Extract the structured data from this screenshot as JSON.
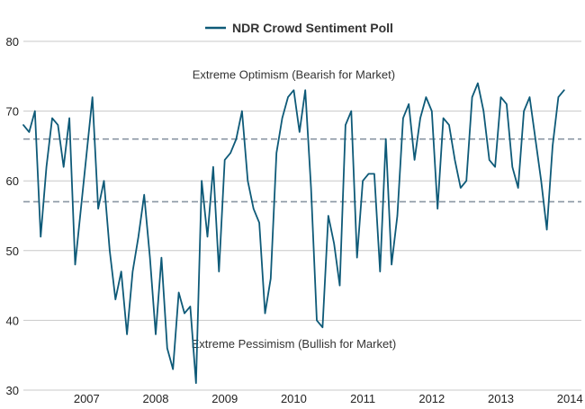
{
  "chart_data": {
    "type": "line",
    "title": "",
    "xlabel": "",
    "ylabel": "",
    "legend": {
      "placement": "top-center",
      "entries": [
        "NDR Crowd Sentiment Poll"
      ]
    },
    "grid": {
      "horizontal": true,
      "vertical": false
    },
    "ylim": [
      30,
      80
    ],
    "yticks": [
      30,
      40,
      50,
      60,
      70,
      80
    ],
    "xlim": [
      "2006-08",
      "2014-09"
    ],
    "xticks": [
      "2007",
      "2008",
      "2009",
      "2010",
      "2011",
      "2012",
      "2013",
      "2014"
    ],
    "reference_lines": [
      {
        "value": 66,
        "style": "dashed"
      },
      {
        "value": 57,
        "style": "dashed"
      }
    ],
    "annotations": [
      {
        "text": "Extreme Optimism (Bearish for Market)",
        "y": 75.3,
        "x_center": "2010-07"
      },
      {
        "text": "Extreme Pessimism (Bullish for Market)",
        "y": 36.7,
        "x_center": "2010-07"
      }
    ],
    "colors": {
      "series": "#0e5a78",
      "grid": "#c8c8c8",
      "reference": "#8a96a3"
    },
    "series": [
      {
        "name": "NDR Crowd Sentiment Poll",
        "points": [
          [
            "2006-08",
            68
          ],
          [
            "2006-09",
            67
          ],
          [
            "2006-10",
            70
          ],
          [
            "2006-11",
            52
          ],
          [
            "2006-12",
            62
          ],
          [
            "2007-01",
            69
          ],
          [
            "2007-02",
            68
          ],
          [
            "2007-03",
            62
          ],
          [
            "2007-04",
            69
          ],
          [
            "2007-05",
            48
          ],
          [
            "2007-06",
            56
          ],
          [
            "2007-07",
            64
          ],
          [
            "2007-08",
            72
          ],
          [
            "2007-09",
            56
          ],
          [
            "2007-10",
            60
          ],
          [
            "2007-11",
            50
          ],
          [
            "2007-12",
            43
          ],
          [
            "2008-01",
            47
          ],
          [
            "2008-02",
            38
          ],
          [
            "2008-03",
            47
          ],
          [
            "2008-04",
            52
          ],
          [
            "2008-05",
            58
          ],
          [
            "2008-06",
            49
          ],
          [
            "2008-07",
            38
          ],
          [
            "2008-08",
            49
          ],
          [
            "2008-09",
            36
          ],
          [
            "2008-10",
            33
          ],
          [
            "2008-11",
            44
          ],
          [
            "2008-12",
            41
          ],
          [
            "2009-01",
            42
          ],
          [
            "2009-02",
            31
          ],
          [
            "2009-03",
            60
          ],
          [
            "2009-04",
            52
          ],
          [
            "2009-05",
            62
          ],
          [
            "2009-06",
            47
          ],
          [
            "2009-07",
            63
          ],
          [
            "2009-08",
            64
          ],
          [
            "2009-09",
            66
          ],
          [
            "2009-10",
            70
          ],
          [
            "2009-11",
            60
          ],
          [
            "2009-12",
            56
          ],
          [
            "2010-01",
            54
          ],
          [
            "2010-02",
            41
          ],
          [
            "2010-03",
            46
          ],
          [
            "2010-04",
            64
          ],
          [
            "2010-05",
            69
          ],
          [
            "2010-06",
            72
          ],
          [
            "2010-07",
            73
          ],
          [
            "2010-08",
            67
          ],
          [
            "2010-09",
            73
          ],
          [
            "2010-10",
            59
          ],
          [
            "2010-11",
            40
          ],
          [
            "2010-12",
            39
          ],
          [
            "2011-01",
            55
          ],
          [
            "2011-02",
            51
          ],
          [
            "2011-03",
            45
          ],
          [
            "2011-04",
            68
          ],
          [
            "2011-05",
            70
          ],
          [
            "2011-06",
            49
          ],
          [
            "2011-07",
            60
          ],
          [
            "2011-08",
            61
          ],
          [
            "2011-09",
            61
          ],
          [
            "2011-10",
            47
          ],
          [
            "2011-11",
            66
          ],
          [
            "2011-12",
            48
          ],
          [
            "2012-01",
            55
          ],
          [
            "2012-02",
            69
          ],
          [
            "2012-03",
            71
          ],
          [
            "2012-04",
            63
          ],
          [
            "2012-05",
            69
          ],
          [
            "2012-06",
            72
          ],
          [
            "2012-07",
            70
          ],
          [
            "2012-08",
            56
          ],
          [
            "2012-09",
            69
          ],
          [
            "2012-10",
            68
          ],
          [
            "2012-11",
            63
          ],
          [
            "2012-12",
            59
          ],
          [
            "2013-01",
            60
          ],
          [
            "2013-02",
            72
          ],
          [
            "2013-03",
            74
          ],
          [
            "2013-04",
            70
          ],
          [
            "2013-05",
            63
          ],
          [
            "2013-06",
            62
          ],
          [
            "2013-07",
            72
          ],
          [
            "2013-08",
            71
          ],
          [
            "2013-09",
            62
          ],
          [
            "2013-10",
            59
          ],
          [
            "2013-11",
            70
          ],
          [
            "2013-12",
            72
          ],
          [
            "2014-01",
            66
          ],
          [
            "2014-02",
            60
          ],
          [
            "2014-03",
            53
          ],
          [
            "2014-04",
            65
          ],
          [
            "2014-05",
            72
          ],
          [
            "2014-06",
            73
          ]
        ]
      }
    ]
  }
}
